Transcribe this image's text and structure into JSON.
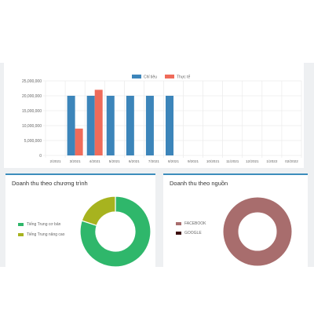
{
  "bar_chart": {
    "legend": [
      {
        "label": "Chỉ tiêu",
        "color": "#3c85ba"
      },
      {
        "label": "Thực tế",
        "color": "#ef6b5a"
      }
    ],
    "y_ticks": [
      "0",
      "5,000,000",
      "10,000,000",
      "15,000,000",
      "20,000,000",
      "25,000,000"
    ]
  },
  "left_panel": {
    "title": "Doanh thu theo chương trình",
    "legend": [
      {
        "label": "Tiếng Trung cơ bản",
        "color": "#2fb76b"
      },
      {
        "label": "Tiếng Trung nâng cao",
        "color": "#a7b31f"
      }
    ]
  },
  "right_panel": {
    "title": "Doanh thu theo nguồn",
    "legend": [
      {
        "label": "FACEBOOK",
        "color": "#a86d6d"
      },
      {
        "label": "GOOGLE",
        "color": "#3b0d0d"
      }
    ]
  },
  "chart_data": [
    {
      "type": "bar",
      "categories": [
        "2/2021",
        "3/2021",
        "4/2021",
        "5/2021",
        "6/2021",
        "7/2021",
        "8/2021",
        "9/2021",
        "10/2021",
        "11/2021",
        "12/2021",
        "1/2022",
        "02/2022"
      ],
      "series": [
        {
          "name": "Chỉ tiêu",
          "color": "#3c85ba",
          "values": [
            0,
            20000000,
            20000000,
            20000000,
            20000000,
            20000000,
            20000000,
            0,
            0,
            0,
            0,
            0,
            0
          ]
        },
        {
          "name": "Thực tế",
          "color": "#ef6b5a",
          "values": [
            0,
            9000000,
            22000000,
            0,
            0,
            0,
            0,
            0,
            0,
            0,
            0,
            0,
            0
          ]
        }
      ],
      "ylim": [
        0,
        25000000
      ]
    },
    {
      "type": "pie",
      "title": "Doanh thu theo chương trình",
      "labels": [
        "Tiếng Trung cơ bản",
        "Tiếng Trung nâng cao"
      ],
      "values": [
        80,
        20
      ],
      "colors": [
        "#2fb76b",
        "#a7b31f"
      ]
    },
    {
      "type": "pie",
      "title": "Doanh thu theo nguồn",
      "labels": [
        "FACEBOOK",
        "GOOGLE"
      ],
      "values": [
        100,
        0
      ],
      "colors": [
        "#a86d6d",
        "#3b0d0d"
      ]
    }
  ]
}
